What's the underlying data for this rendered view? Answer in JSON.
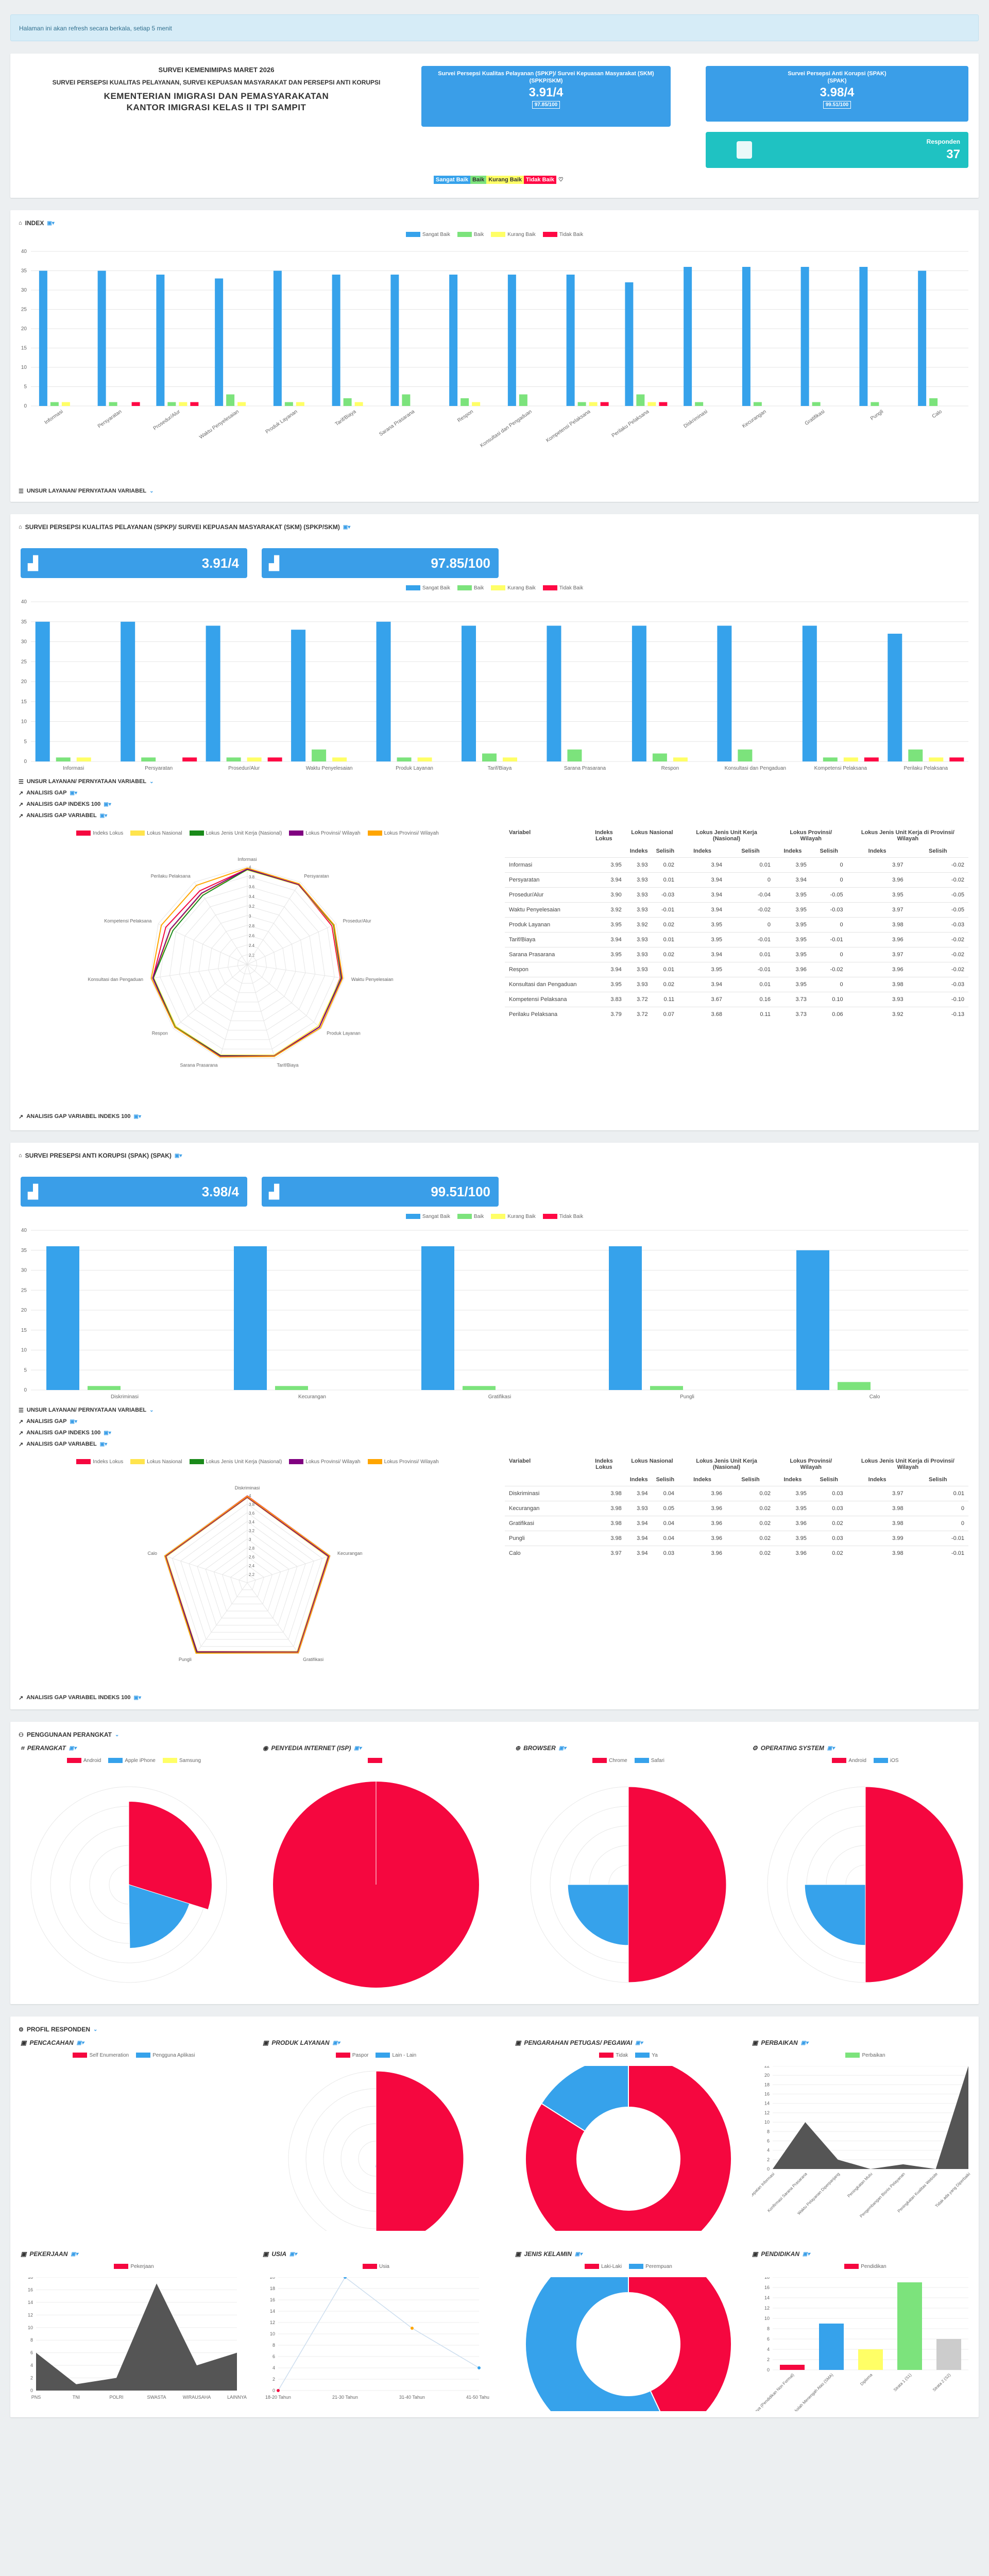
{
  "alert": "Halaman ini akan refresh secara berkala, setiap 5 menit",
  "header": {
    "l1": "SURVEI KEMENIMIPAS MARET 2026",
    "l2": "SURVEI PERSEPSI KUALITAS PELAYANAN, SURVEI KEPUASAN MASYARAKAT DAN PERSEPSI ANTI KORUPSI",
    "l3": "KEMENTERIAN IMIGRASI DAN PEMASYARAKATAN",
    "l4": "KANTOR IMIGRASI KELAS II TPI SAMPIT"
  },
  "card_spkp": {
    "title": "Survei Persepsi Kualitas Pelayanan (SPKP)/ Survei Kepuasan Masyarakat (SKM)",
    "sub": "(SPKP/SKM)",
    "value": "3.91/4",
    "score": "97.85/100"
  },
  "card_spak": {
    "title": "Survei Persepsi Anti Korupsi (SPAK)",
    "sub": "(SPAK)",
    "value": "3.98/4",
    "score": "99.51/100"
  },
  "card_resp": {
    "label": "Responden",
    "value": "37"
  },
  "scale_legend": [
    "Sangat Baik",
    "Baik",
    "Kurang Baik",
    "Tidak Baik"
  ],
  "colors": {
    "sb": "#36a2eb",
    "b": "#7ce37c",
    "kb": "#ffff66",
    "tb": "#ff0844",
    "accent": "#3a9ee8",
    "red": "#f5073f",
    "green": "#1a8a1a",
    "purple": "#800080",
    "orange": "#ffa500",
    "gold": "#ffe44d"
  },
  "index": {
    "title": "INDEX",
    "unsur_link": "UNSUR LAYANAN/ PERNYATAAN VARIABEL",
    "ymax": 40,
    "chart_data": {
      "type": "bar",
      "categories": [
        "Informasi",
        "Persyaratan",
        "Prosedur/Alur",
        "Waktu Penyelesaian",
        "Produk Layanan",
        "Tarif/Biaya",
        "Sarana Prasarana",
        "Respon",
        "Konsultasi dan Pengaduan",
        "Kompetensi Pelaksana",
        "Perilaku Pelaksana",
        "Diskriminasi",
        "Kecurangan",
        "Gratifikasi",
        "Pungli",
        "Calo"
      ],
      "series": [
        {
          "name": "Sangat Baik",
          "values": [
            35,
            35,
            34,
            33,
            35,
            34,
            34,
            34,
            34,
            34,
            32,
            36,
            36,
            36,
            36,
            35
          ]
        },
        {
          "name": "Baik",
          "values": [
            1,
            1,
            1,
            3,
            1,
            2,
            3,
            2,
            3,
            1,
            3,
            1,
            1,
            1,
            1,
            2
          ]
        },
        {
          "name": "Kurang Baik",
          "values": [
            1,
            0,
            1,
            1,
            1,
            1,
            0,
            1,
            0,
            1,
            1,
            0,
            0,
            0,
            0,
            0
          ]
        },
        {
          "name": "Tidak Baik",
          "values": [
            0,
            1,
            1,
            0,
            0,
            0,
            0,
            0,
            0,
            1,
            1,
            0,
            0,
            0,
            0,
            0
          ]
        }
      ],
      "ylim": [
        0,
        40
      ]
    }
  },
  "spkp": {
    "title": "SURVEI PERSEPSI KUALITAS PELAYANAN (SPKP)/ SURVEI KEPUASAN MASYARAKAT (SKM) (SPKP/SKM)",
    "box1": "3.91/4",
    "box2": "97.85/100",
    "links": [
      "UNSUR LAYANAN/ PERNYATAAN VARIABEL",
      "ANALISIS GAP",
      "ANALISIS GAP INDEKS 100",
      "ANALISIS GAP VARIABEL"
    ],
    "link_bottom": "ANALISIS GAP VARIABEL INDEKS 100",
    "chart_data": {
      "type": "bar",
      "categories": [
        "Informasi",
        "Persyaratan",
        "Prosedur/Alur",
        "Waktu Penyelesaian",
        "Produk Layanan",
        "Tarif/Biaya",
        "Sarana Prasarana",
        "Respon",
        "Konsultasi dan Pengaduan",
        "Kompetensi Pelaksana",
        "Perilaku Pelaksana"
      ],
      "series": [
        {
          "name": "Sangat Baik",
          "values": [
            35,
            35,
            34,
            33,
            35,
            34,
            34,
            34,
            34,
            34,
            32
          ]
        },
        {
          "name": "Baik",
          "values": [
            1,
            1,
            1,
            3,
            1,
            2,
            3,
            2,
            3,
            1,
            3
          ]
        },
        {
          "name": "Kurang Baik",
          "values": [
            1,
            0,
            1,
            1,
            1,
            1,
            0,
            1,
            0,
            1,
            1
          ]
        },
        {
          "name": "Tidak Baik",
          "values": [
            0,
            1,
            1,
            0,
            0,
            0,
            0,
            0,
            0,
            1,
            1
          ]
        }
      ],
      "ylim": [
        0,
        40
      ]
    },
    "radar_legend": [
      "Indeks Lokus",
      "Lokus Nasional",
      "Lokus Jenis Unit Kerja (Nasional)",
      "Lokus Provinsi/ Wilayah",
      "Lokus Provinsi/ Wilayah"
    ],
    "radar_ticks": [
      "4",
      "3.8",
      "3.6",
      "3.4",
      "3.2",
      "3",
      "2.8",
      "2.6",
      "2.4",
      "2.2"
    ],
    "table": {
      "h1": [
        "Variabel",
        "Indeks Lokus",
        "Lokus Nasional",
        "Lokus Jenis Unit Kerja (Nasional)",
        "Lokus Provinsi/ Wilayah",
        "Lokus Jenis Unit Kerja di Provinsi/ Wilayah"
      ],
      "h2": [
        "Indeks",
        "Selisih",
        "Indeks",
        "Selisih",
        "Indeks",
        "Selisih",
        "Indeks",
        "Selisih"
      ],
      "rows": [
        [
          "Informasi",
          "3.95",
          "3.93",
          "0.02",
          "3.94",
          "0.01",
          "3.95",
          "0",
          "3.97",
          "-0.02"
        ],
        [
          "Persyaratan",
          "3.94",
          "3.93",
          "0.01",
          "3.94",
          "0",
          "3.94",
          "0",
          "3.96",
          "-0.02"
        ],
        [
          "Prosedur/Alur",
          "3.90",
          "3.93",
          "-0.03",
          "3.94",
          "-0.04",
          "3.95",
          "-0.05",
          "3.95",
          "-0.05"
        ],
        [
          "Waktu Penyelesaian",
          "3.92",
          "3.93",
          "-0.01",
          "3.94",
          "-0.02",
          "3.95",
          "-0.03",
          "3.97",
          "-0.05"
        ],
        [
          "Produk Layanan",
          "3.95",
          "3.92",
          "0.02",
          "3.95",
          "0",
          "3.95",
          "0",
          "3.98",
          "-0.03"
        ],
        [
          "Tarif/Biaya",
          "3.94",
          "3.93",
          "0.01",
          "3.95",
          "-0.01",
          "3.95",
          "-0.01",
          "3.96",
          "-0.02"
        ],
        [
          "Sarana Prasarana",
          "3.95",
          "3.93",
          "0.02",
          "3.94",
          "0.01",
          "3.95",
          "0",
          "3.97",
          "-0.02"
        ],
        [
          "Respon",
          "3.94",
          "3.93",
          "0.01",
          "3.95",
          "-0.01",
          "3.96",
          "-0.02",
          "3.96",
          "-0.02"
        ],
        [
          "Konsultasi dan Pengaduan",
          "3.95",
          "3.93",
          "0.02",
          "3.94",
          "0.01",
          "3.95",
          "0",
          "3.98",
          "-0.03"
        ],
        [
          "Kompetensi Pelaksana",
          "3.83",
          "3.72",
          "0.11",
          "3.67",
          "0.16",
          "3.73",
          "0.10",
          "3.93",
          "-0.10"
        ],
        [
          "Perilaku Pelaksana",
          "3.79",
          "3.72",
          "0.07",
          "3.68",
          "0.11",
          "3.73",
          "0.06",
          "3.92",
          "-0.13"
        ]
      ]
    }
  },
  "spak": {
    "title": "SURVEI PRESEPSI ANTI KORUPSI (SPAK) (SPAK)",
    "box1": "3.98/4",
    "box2": "99.51/100",
    "links": [
      "UNSUR LAYANAN/ PERNYATAAN VARIABEL",
      "ANALISIS GAP",
      "ANALISIS GAP INDEKS 100",
      "ANALISIS GAP VARIABEL"
    ],
    "link_bottom": "ANALISIS GAP VARIABEL INDEKS 100",
    "chart_data": {
      "type": "bar",
      "categories": [
        "Diskriminasi",
        "Kecurangan",
        "Gratifikasi",
        "Pungli",
        "Calo"
      ],
      "series": [
        {
          "name": "Sangat Baik",
          "values": [
            36,
            36,
            36,
            36,
            35
          ]
        },
        {
          "name": "Baik",
          "values": [
            1,
            1,
            1,
            1,
            2
          ]
        },
        {
          "name": "Kurang Baik",
          "values": [
            0,
            0,
            0,
            0,
            0
          ]
        },
        {
          "name": "Tidak Baik",
          "values": [
            0,
            0,
            0,
            0,
            0
          ]
        }
      ],
      "ylim": [
        0,
        40
      ]
    },
    "radar_legend": [
      "Indeks Lokus",
      "Lokus Nasional",
      "Lokus Jenis Unit Kerja (Nasional)",
      "Lokus Provinsi/ Wilayah",
      "Lokus Provinsi/ Wilayah"
    ],
    "table": {
      "h1": [
        "Variabel",
        "Indeks Lokus",
        "Lokus Nasional",
        "Lokus Jenis Unit Kerja (Nasional)",
        "Lokus Provinsi/ Wilayah",
        "Lokus Jenis Unit Kerja di Provinsi/ Wilayah"
      ],
      "h2": [
        "Indeks",
        "Selisih",
        "Indeks",
        "Selisih",
        "Indeks",
        "Selisih",
        "Indeks",
        "Selisih"
      ],
      "rows": [
        [
          "Diskriminasi",
          "3.98",
          "3.94",
          "0.04",
          "3.96",
          "0.02",
          "3.95",
          "0.03",
          "3.97",
          "0.01"
        ],
        [
          "Kecurangan",
          "3.98",
          "3.93",
          "0.05",
          "3.96",
          "0.02",
          "3.95",
          "0.03",
          "3.98",
          "0"
        ],
        [
          "Gratifikasi",
          "3.98",
          "3.94",
          "0.04",
          "3.96",
          "0.02",
          "3.96",
          "0.02",
          "3.98",
          "0"
        ],
        [
          "Pungli",
          "3.98",
          "3.94",
          "0.04",
          "3.96",
          "0.02",
          "3.95",
          "0.03",
          "3.99",
          "-0.01"
        ],
        [
          "Calo",
          "3.97",
          "3.94",
          "0.03",
          "3.96",
          "0.02",
          "3.96",
          "0.02",
          "3.98",
          "-0.01"
        ]
      ]
    }
  },
  "perangkat": {
    "title": "PENGGUNAAN PERANGKAT",
    "charts": [
      {
        "title": "PERANGKAT",
        "legend": [
          "Android",
          "Apple iPhone",
          "Samsung"
        ]
      },
      {
        "title": "PENYEDIA INTERNET (ISP)",
        "legend": [
          ""
        ]
      },
      {
        "title": "BROWSER",
        "legend": [
          "Chrome",
          "Safari"
        ]
      },
      {
        "title": "OPERATING SYSTEM",
        "legend": [
          "Android",
          "iOS"
        ]
      }
    ]
  },
  "profil": {
    "title": "PROFIL RESPONDEN",
    "charts": [
      {
        "title": "PENCACAHAN",
        "legend": [
          "Self Enumeration",
          "Pengguna Aplikasi"
        ]
      },
      {
        "title": "PRODUK LAYANAN",
        "legend": [
          "Paspor",
          "Lain - Lain"
        ]
      },
      {
        "title": "PENGARAHAN PETUGAS/ PEGAWAI",
        "legend": [
          "Tidak",
          "Ya"
        ]
      },
      {
        "title": "PERBAIKAN",
        "legend": [
          "Perbaikan"
        ]
      },
      {
        "title": "PEKERJAAN",
        "legend": [
          "Pekerjaan"
        ]
      },
      {
        "title": "USIA",
        "legend": [
          "Usia"
        ]
      },
      {
        "title": "JENIS KELAMIN",
        "legend": [
          "Laki-Laki",
          "Perempuan"
        ]
      },
      {
        "title": "PENDIDIKAN",
        "legend": [
          "Pendidikan"
        ]
      }
    ],
    "pekerjaan_x": [
      "PNS",
      "TNI",
      "POLRI",
      "SWASTA",
      "WIRAUSAHA",
      "LAINNYA"
    ],
    "usia_x": [
      "18-20 Tahun",
      "21-30 Tahun",
      "31-40 Tahun",
      "41-50 Tahun"
    ],
    "perbaikan_x": [
      "Kecepatan Informasi",
      "Konfirmasi Sarana Prasarana",
      "Waktu Pelayanan Diperpanjang",
      "Peningkatan Mutu",
      "Pengembangan Bisnis Pelayanan",
      "Peningkatan Kualitas Website",
      "Tidak ada yang Diperbaiki"
    ],
    "pendidikan_x": [
      "Lainnya (Pendidikan Non Formal)",
      "Sekolah Menengah Atas (SMA)",
      "Diploma",
      "Strata 1 (S1)",
      "Strata 2 (S2)"
    ]
  }
}
